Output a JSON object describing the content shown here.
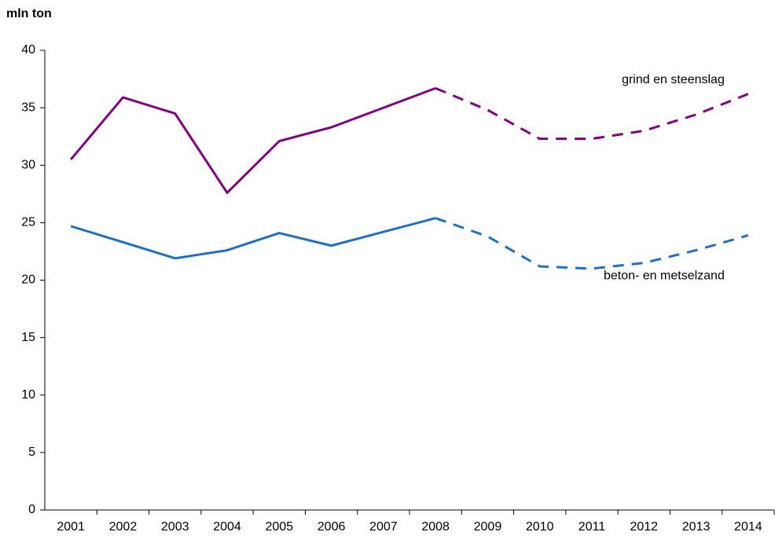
{
  "chart_data": {
    "type": "line",
    "y_label": "mln ton",
    "categories": [
      "2001",
      "2002",
      "2003",
      "2004",
      "2005",
      "2006",
      "2007",
      "2008",
      "2009",
      "2010",
      "2011",
      "2012",
      "2013",
      "2014"
    ],
    "forecast_start": "2008",
    "series": [
      {
        "name": "grind en steenslag",
        "color": "#800080",
        "values": [
          30.5,
          35.9,
          34.5,
          27.6,
          32.1,
          33.3,
          35.0,
          36.7,
          34.8,
          32.3,
          32.3,
          33.0,
          34.4,
          36.2
        ]
      },
      {
        "name": "beton- en metselzand",
        "color": "#1f6fc5",
        "values": [
          24.7,
          23.3,
          21.9,
          22.6,
          24.1,
          23.0,
          24.2,
          25.4,
          23.8,
          21.2,
          21.0,
          21.5,
          22.6,
          23.9
        ]
      }
    ],
    "ylim": [
      0,
      40
    ],
    "yticks": [
      0,
      5,
      10,
      15,
      20,
      25,
      30,
      35,
      40
    ],
    "grid": false
  }
}
